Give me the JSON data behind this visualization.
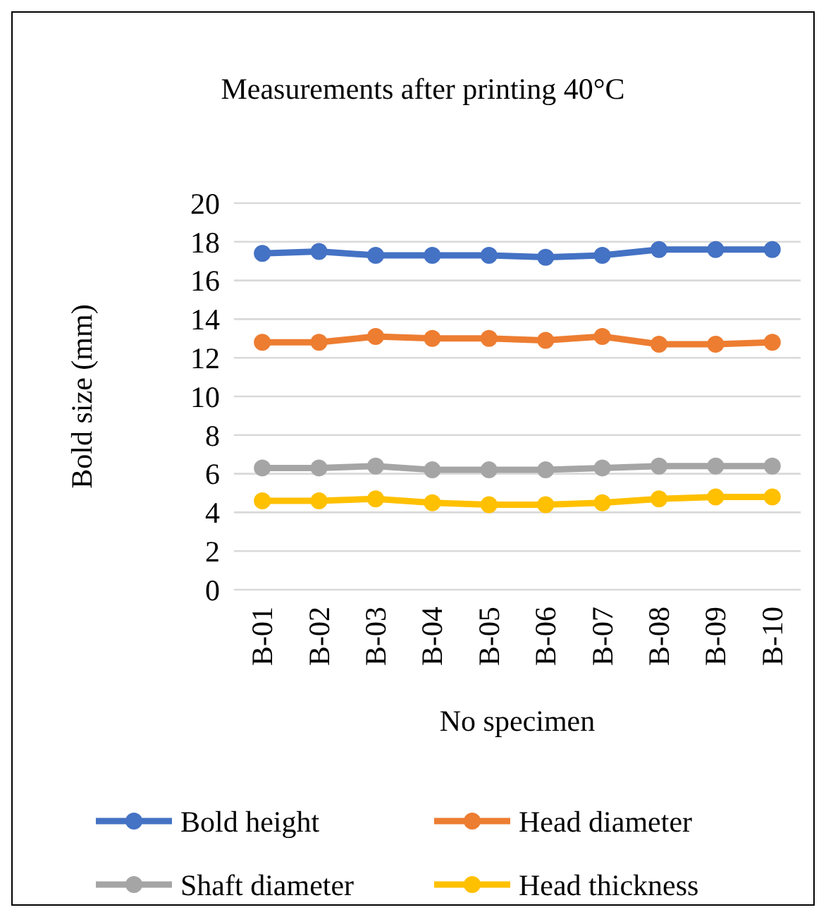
{
  "chart_data": {
    "type": "line",
    "title": "Measurements after printing 40°C",
    "xlabel": "No specimen",
    "ylabel": "Bold size (mm)",
    "categories": [
      "B-01",
      "B-02",
      "B-03",
      "B-04",
      "B-05",
      "B-06",
      "B-07",
      "B-08",
      "B-09",
      "B-10"
    ],
    "series": [
      {
        "name": "Bold height",
        "color": "#4472c4",
        "values": [
          17.4,
          17.5,
          17.3,
          17.3,
          17.3,
          17.2,
          17.3,
          17.6,
          17.6,
          17.6
        ]
      },
      {
        "name": "Head diameter",
        "color": "#ed7d31",
        "values": [
          12.8,
          12.8,
          13.1,
          13.0,
          13.0,
          12.9,
          13.1,
          12.7,
          12.7,
          12.8
        ]
      },
      {
        "name": "Shaft diameter",
        "color": "#a5a5a5",
        "values": [
          6.3,
          6.3,
          6.4,
          6.2,
          6.2,
          6.2,
          6.3,
          6.4,
          6.4,
          6.4
        ]
      },
      {
        "name": "Head thickness",
        "color": "#ffc000",
        "values": [
          4.6,
          4.6,
          4.7,
          4.5,
          4.4,
          4.4,
          4.5,
          4.7,
          4.8,
          4.8
        ]
      }
    ],
    "ylim": [
      0,
      20
    ],
    "yticks": [
      0,
      2,
      4,
      6,
      8,
      10,
      12,
      14,
      16,
      18,
      20
    ],
    "grid": "y",
    "legend": "bottom",
    "marker": "circle",
    "line_style": "solid"
  }
}
